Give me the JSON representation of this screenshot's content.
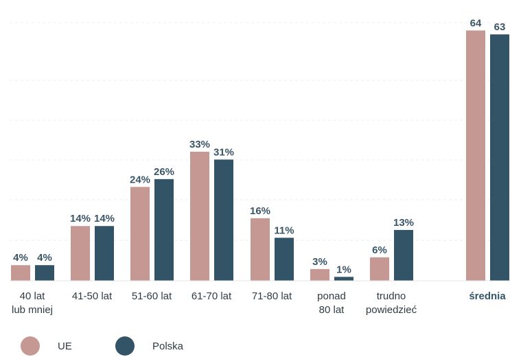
{
  "chart_data": {
    "type": "bar",
    "categories": [
      [
        "40 lat",
        "lub mniej"
      ],
      [
        "41-50 lat"
      ],
      [
        "51-60 lat"
      ],
      [
        "61-70 lat"
      ],
      [
        "71-80 lat"
      ],
      [
        "ponad",
        "80 lat"
      ],
      [
        "trudno",
        "powiedzieć"
      ],
      [
        "średnia"
      ]
    ],
    "series": [
      {
        "name": "UE",
        "color": "#c69893",
        "values": [
          4,
          14,
          24,
          33,
          16,
          3,
          6,
          64
        ],
        "labels": [
          "4%",
          "14%",
          "24%",
          "33%",
          "16%",
          "3%",
          "6%",
          "64"
        ]
      },
      {
        "name": "Polska",
        "color": "#325466",
        "values": [
          4,
          14,
          26,
          31,
          11,
          1,
          13,
          63
        ],
        "labels": [
          "4%",
          "14%",
          "26%",
          "31%",
          "11%",
          "1%",
          "13%",
          "63"
        ]
      }
    ],
    "ylim": [
      0,
      66
    ],
    "grid": true,
    "legend_position": "bottom-left",
    "title": "",
    "xlabel": "",
    "ylabel": ""
  }
}
